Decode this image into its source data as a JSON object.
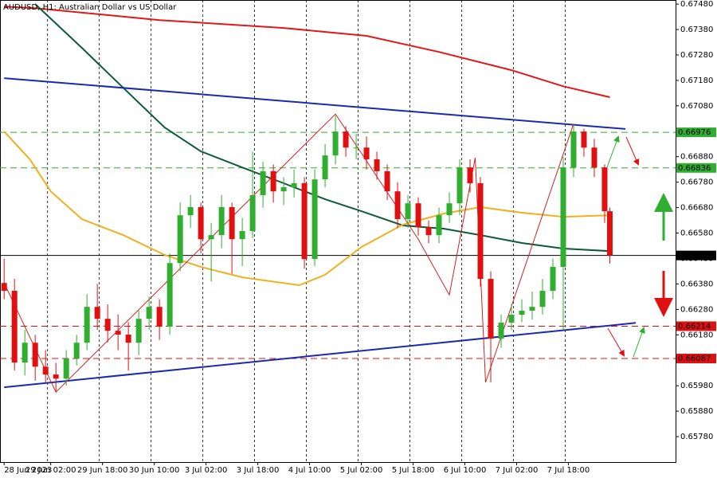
{
  "chart_data": {
    "type": "candlestick",
    "title": "AUDUSD, H1:  Australian Dollar vs US Dollar",
    "up_color": "#2fae2f",
    "down_color": "#e01010",
    "xlim": [
      -0.8,
      129.7
    ],
    "ylim": [
      0.6568,
      0.67496
    ],
    "xticks": [
      {
        "value": 0,
        "label": "28 Jun 2023"
      },
      {
        "value": 9,
        "label": "29 Jun 02:00"
      },
      {
        "value": 19,
        "label": "29 Jun 18:00"
      },
      {
        "value": 29,
        "label": "30 Jun 10:00"
      },
      {
        "value": 39,
        "label": "3 Jul 02:00"
      },
      {
        "value": 49,
        "label": "3 Jul 18:00"
      },
      {
        "value": 59,
        "label": "4 Jul 10:00"
      },
      {
        "value": 69,
        "label": "5 Jul 02:00"
      },
      {
        "value": 79,
        "label": "5 Jul 18:00"
      },
      {
        "value": 89,
        "label": "6 Jul 10:00"
      },
      {
        "value": 99,
        "label": "7 Jul 02:00"
      },
      {
        "value": 109,
        "label": "7 Jul 18:00"
      }
    ],
    "yticks": [
      {
        "value": 0.6748,
        "label": "0.67480"
      },
      {
        "value": 0.6738,
        "label": "0.67380"
      },
      {
        "value": 0.6728,
        "label": "0.67280"
      },
      {
        "value": 0.6718,
        "label": "0.67180"
      },
      {
        "value": 0.6708,
        "label": "0.67080"
      },
      {
        "value": 0.6698,
        "label": "0.66980"
      },
      {
        "value": 0.6688,
        "label": "0.66880"
      },
      {
        "value": 0.6678,
        "label": "0.66780"
      },
      {
        "value": 0.6668,
        "label": "0.66680"
      },
      {
        "value": 0.6658,
        "label": "0.66580"
      },
      {
        "value": 0.6648,
        "label": "0.66480"
      },
      {
        "value": 0.6638,
        "label": "0.66380"
      },
      {
        "value": 0.6628,
        "label": "0.66280"
      },
      {
        "value": 0.6618,
        "label": "0.66180"
      },
      {
        "value": 0.6608,
        "label": "0.66080"
      },
      {
        "value": 0.6598,
        "label": "0.65980"
      },
      {
        "value": 0.6588,
        "label": "0.65880"
      },
      {
        "value": 0.6578,
        "label": "0.65780"
      }
    ],
    "x": [
      0,
      2,
      4,
      6,
      8,
      10,
      12,
      14,
      16,
      18,
      20,
      22,
      24,
      26,
      28,
      30,
      32,
      34,
      36,
      38,
      40,
      42,
      44,
      46,
      48,
      50,
      52,
      54,
      56,
      58,
      60,
      62,
      64,
      66,
      68,
      70,
      72,
      74,
      76,
      78,
      80,
      82,
      84,
      86,
      88,
      90,
      92,
      94,
      96,
      98,
      100,
      102,
      104,
      106,
      108,
      110,
      112,
      114,
      116,
      117
    ],
    "ohlc": [
      [
        0.66384,
        0.6648,
        0.6632,
        0.66353
      ],
      [
        0.66353,
        0.664,
        0.6604,
        0.66071
      ],
      [
        0.66071,
        0.662,
        0.6602,
        0.66149
      ],
      [
        0.66149,
        0.6618,
        0.66,
        0.66055
      ],
      [
        0.66055,
        0.6612,
        0.6599,
        0.66024
      ],
      [
        0.66024,
        0.6607,
        0.65955,
        0.66008
      ],
      [
        0.66008,
        0.6612,
        0.6598,
        0.66087
      ],
      [
        0.66087,
        0.6618,
        0.6606,
        0.66149
      ],
      [
        0.66149,
        0.6634,
        0.6612,
        0.6629
      ],
      [
        0.6629,
        0.6638,
        0.662,
        0.66243
      ],
      [
        0.66243,
        0.663,
        0.6615,
        0.66196
      ],
      [
        0.66196,
        0.6626,
        0.6612,
        0.66181
      ],
      [
        0.66181,
        0.6623,
        0.6604,
        0.66149
      ],
      [
        0.66149,
        0.6628,
        0.661,
        0.66243
      ],
      [
        0.66243,
        0.6633,
        0.662,
        0.6629
      ],
      [
        0.6629,
        0.6632,
        0.6616,
        0.66212
      ],
      [
        0.66212,
        0.665,
        0.6618,
        0.66462
      ],
      [
        0.66462,
        0.667,
        0.6643,
        0.6665
      ],
      [
        0.6665,
        0.6673,
        0.666,
        0.66682
      ],
      [
        0.66682,
        0.667,
        0.665,
        0.66556
      ],
      [
        0.66556,
        0.6662,
        0.6639,
        0.66572
      ],
      [
        0.66572,
        0.6673,
        0.6652,
        0.66682
      ],
      [
        0.66682,
        0.667,
        0.6642,
        0.66556
      ],
      [
        0.66556,
        0.6664,
        0.6645,
        0.66588
      ],
      [
        0.66588,
        0.669,
        0.6656,
        0.66729
      ],
      [
        0.66729,
        0.6686,
        0.6668,
        0.66823
      ],
      [
        0.66823,
        0.6685,
        0.667,
        0.66744
      ],
      [
        0.66744,
        0.668,
        0.6669,
        0.6676
      ],
      [
        0.6676,
        0.6683,
        0.6672,
        0.66776
      ],
      [
        0.66776,
        0.668,
        0.6644,
        0.66478
      ],
      [
        0.66478,
        0.6683,
        0.6645,
        0.66791
      ],
      [
        0.66791,
        0.6693,
        0.6676,
        0.66885
      ],
      [
        0.66885,
        0.67042,
        0.6685,
        0.66979
      ],
      [
        0.66979,
        0.67,
        0.6688,
        0.66916
      ],
      [
        0.66916,
        0.6697,
        0.6687,
        0.66916
      ],
      [
        0.66916,
        0.6696,
        0.6683,
        0.6687
      ],
      [
        0.6687,
        0.669,
        0.6679,
        0.66823
      ],
      [
        0.66823,
        0.6685,
        0.6671,
        0.66744
      ],
      [
        0.66744,
        0.6678,
        0.666,
        0.66635
      ],
      [
        0.66635,
        0.6673,
        0.666,
        0.66697
      ],
      [
        0.66697,
        0.6672,
        0.6657,
        0.66603
      ],
      [
        0.66603,
        0.6663,
        0.6654,
        0.66572
      ],
      [
        0.66572,
        0.6668,
        0.6654,
        0.6665
      ],
      [
        0.6665,
        0.6674,
        0.6662,
        0.66697
      ],
      [
        0.66697,
        0.6687,
        0.6665,
        0.66838
      ],
      [
        0.66838,
        0.6687,
        0.6674,
        0.66776
      ],
      [
        0.66776,
        0.668,
        0.6637,
        0.664
      ],
      [
        0.664,
        0.6643,
        0.65993,
        0.66165
      ],
      [
        0.66165,
        0.6626,
        0.6613,
        0.66228
      ],
      [
        0.66228,
        0.663,
        0.662,
        0.66259
      ],
      [
        0.66259,
        0.6632,
        0.6623,
        0.66275
      ],
      [
        0.66275,
        0.6635,
        0.6624,
        0.6629
      ],
      [
        0.6629,
        0.664,
        0.6626,
        0.66353
      ],
      [
        0.66353,
        0.6648,
        0.6632,
        0.66447
      ],
      [
        0.66447,
        0.6688,
        0.662,
        0.66838
      ],
      [
        0.66838,
        0.6701,
        0.668,
        0.66979
      ],
      [
        0.66979,
        0.6699,
        0.6688,
        0.66916
      ],
      [
        0.66916,
        0.6695,
        0.668,
        0.66838
      ],
      [
        0.66838,
        0.6685,
        0.6662,
        0.66666
      ],
      [
        0.66666,
        0.6668,
        0.6646,
        0.66492
      ]
    ],
    "overlays": [
      {
        "color": "#e01818",
        "style": "thick",
        "x": [
          0,
          6,
          30,
          54,
          70,
          84,
          98,
          108,
          117
        ],
        "values": [
          0.6747,
          0.67464,
          0.67417,
          0.67386,
          0.67355,
          0.67292,
          0.6722,
          0.67157,
          0.67114
        ]
      },
      {
        "color": "#0e5a3a",
        "style": "thick",
        "x": [
          6,
          15,
          23,
          31,
          38,
          46,
          54,
          62,
          69,
          77,
          85,
          92,
          100,
          108,
          117
        ],
        "values": [
          0.6748,
          0.67308,
          0.67151,
          0.66995,
          0.66901,
          0.66838,
          0.66776,
          0.66713,
          0.66666,
          0.6661,
          0.66597,
          0.66572,
          0.66541,
          0.66519,
          0.66509
        ]
      },
      {
        "color": "#f0b020",
        "style": "thick",
        "x": [
          0,
          5,
          9,
          15,
          23,
          31,
          38,
          46,
          57,
          62,
          69,
          77,
          85,
          92,
          100,
          108,
          117
        ],
        "values": [
          0.66979,
          0.66869,
          0.66744,
          0.66635,
          0.66572,
          0.66494,
          0.66447,
          0.66406,
          0.66375,
          0.66416,
          0.66525,
          0.66613,
          0.66657,
          0.66682,
          0.6666,
          0.66644,
          0.6665
        ]
      },
      {
        "color": "#1a2ab0",
        "style": "thick",
        "x": [
          0,
          120
        ],
        "values": [
          0.67189,
          0.66989
        ]
      },
      {
        "color": "#1a2ab0",
        "style": "thick",
        "x": [
          0,
          122
        ],
        "values": [
          0.65974,
          0.66227
        ]
      },
      {
        "color": "#d02020",
        "style": "thin",
        "x": [
          0,
          10,
          64,
          80,
          86,
          91,
          93,
          110
        ],
        "values": [
          0.66384,
          0.65955,
          0.67048,
          0.66556,
          0.66337,
          0.66876,
          0.65993,
          0.6701
        ]
      }
    ],
    "levels": [
      {
        "value": 0.66976,
        "color": "#2fae2f",
        "style": "dashed"
      },
      {
        "value": 0.66836,
        "color": "#2fae2f",
        "style": "dashed"
      },
      {
        "value": 0.66492,
        "color": "#000000",
        "style": "solid"
      },
      {
        "value": 0.66214,
        "color": "#e01010",
        "style": "dashed"
      },
      {
        "value": 0.66087,
        "color": "#e01010",
        "style": "dashed"
      }
    ]
  }
}
